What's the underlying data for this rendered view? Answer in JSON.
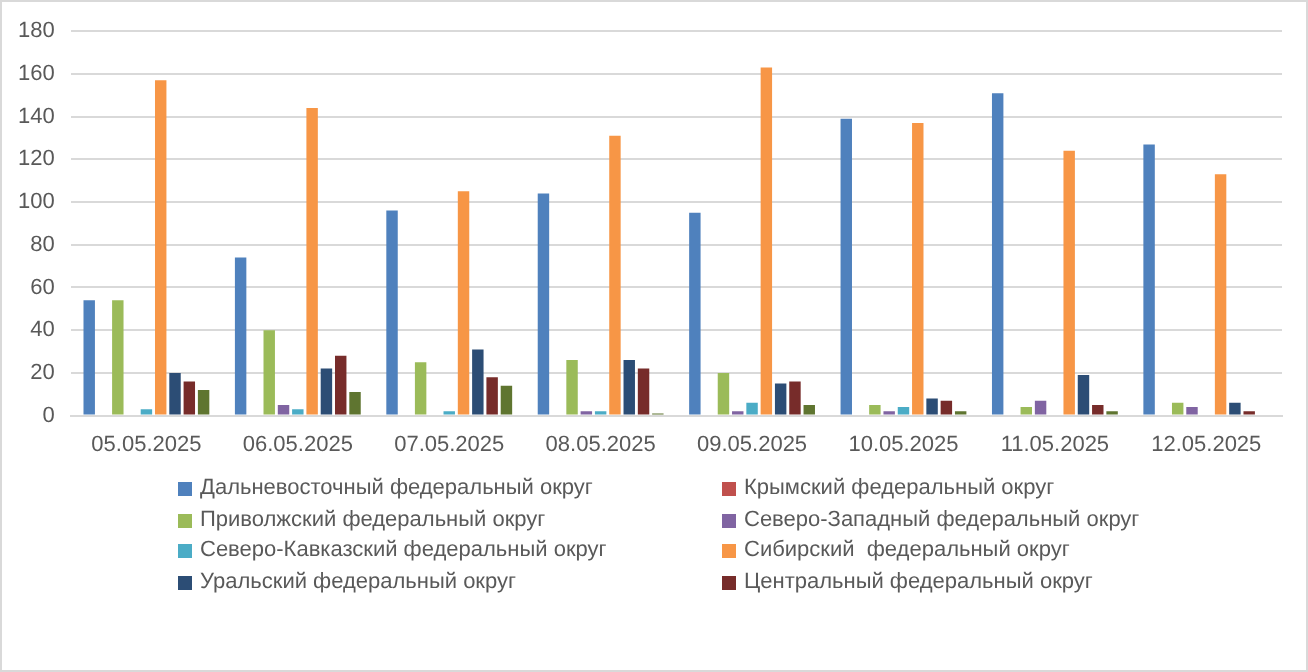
{
  "chart_data": {
    "type": "bar",
    "categories": [
      "05.05.2025",
      "06.05.2025",
      "07.05.2025",
      "08.05.2025",
      "09.05.2025",
      "10.05.2025",
      "11.05.2025",
      "12.05.2025"
    ],
    "series": [
      {
        "name": "Дальневосточный федеральный округ",
        "color": "#4f81bd",
        "values": [
          54,
          74,
          96,
          104,
          95,
          139,
          151,
          127
        ]
      },
      {
        "name": "Крымский федеральный округ",
        "color": "#c0504d",
        "values": [
          0,
          0,
          0,
          0,
          0,
          0,
          0,
          0
        ]
      },
      {
        "name": "Приволжский федеральный округ",
        "color": "#9bbb59",
        "values": [
          54,
          40,
          25,
          26,
          20,
          5,
          4,
          6
        ]
      },
      {
        "name": "Северо-Западный федеральный округ",
        "color": "#8064a2",
        "values": [
          0,
          5,
          0,
          2,
          2,
          2,
          7,
          4
        ]
      },
      {
        "name": "Северо-Кавказский федеральный округ",
        "color": "#4bacc6",
        "values": [
          3,
          3,
          2,
          2,
          6,
          4,
          0,
          0
        ]
      },
      {
        "name": "Сибирский  федеральный округ",
        "color": "#f79646",
        "values": [
          157,
          144,
          105,
          131,
          163,
          137,
          124,
          113
        ]
      },
      {
        "name": "Уральский федеральный округ",
        "color": "#2c4d75",
        "values": [
          20,
          22,
          31,
          26,
          15,
          8,
          19,
          6
        ]
      },
      {
        "name": "Центральный федеральный округ",
        "color": "#772c2a",
        "values": [
          16,
          28,
          18,
          22,
          16,
          7,
          5,
          2
        ]
      },
      {
        "color": "#5f7530",
        "values": [
          12,
          11,
          14,
          1,
          5,
          2,
          2,
          0
        ]
      }
    ],
    "ylim": [
      0,
      180
    ],
    "yticks": [
      0,
      20,
      40,
      60,
      80,
      100,
      120,
      140,
      160,
      180
    ],
    "grid": "y",
    "legend": "bottom"
  }
}
